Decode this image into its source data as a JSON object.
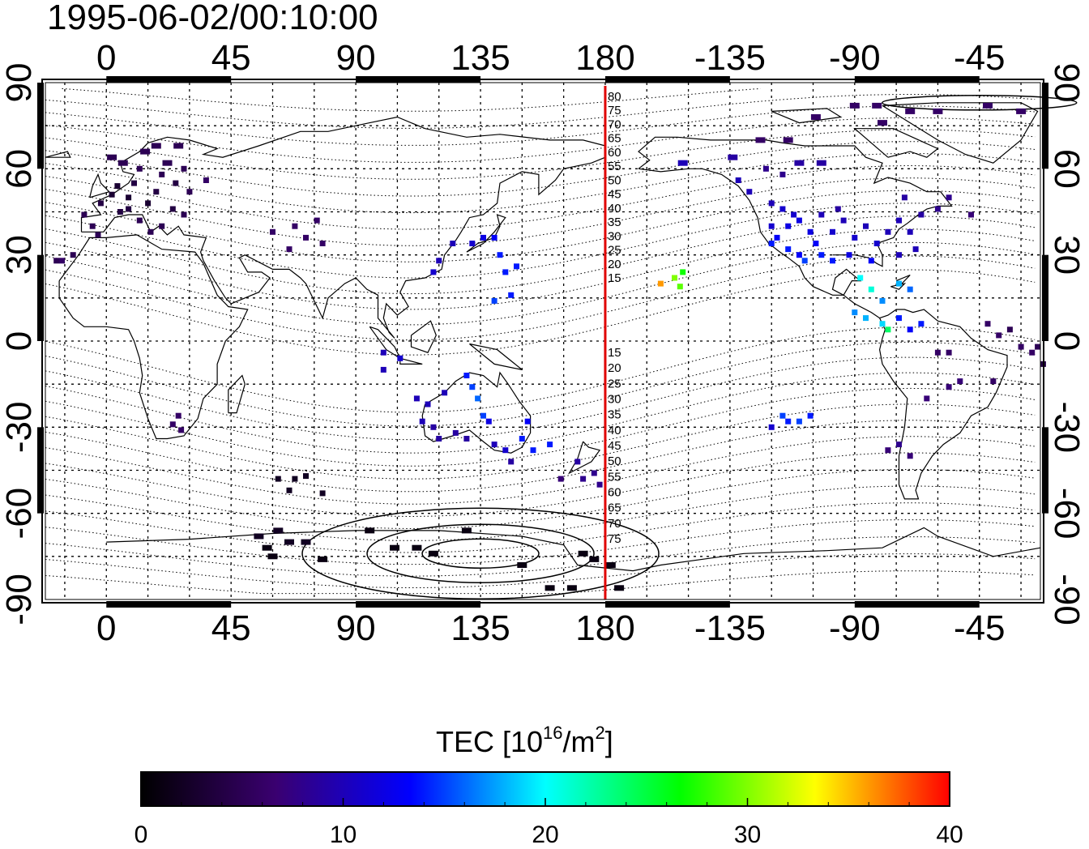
{
  "header": {
    "timestamp": "1995-06-02/00:10:00"
  },
  "chart_data": {
    "type": "scatter",
    "subtype": "geographic-map",
    "projection": "equirectangular",
    "lon_ticks_top": [
      "0",
      "45",
      "90",
      "135",
      "180",
      "-135",
      "-90",
      "-45"
    ],
    "lon_ticks_bottom": [
      "0",
      "45",
      "90",
      "135",
      "180",
      "-135",
      "-90",
      "-45"
    ],
    "lat_ticks_left": [
      "90",
      "60",
      "30",
      "0",
      "-30",
      "-60",
      "-90"
    ],
    "lat_ticks_right": [
      "90",
      "60",
      "30",
      "0",
      "-30",
      "-60",
      "-90"
    ],
    "xlim": [
      -22,
      337
    ],
    "ylim": [
      -90,
      90
    ],
    "grid": true,
    "meridian_marker": {
      "lon": 180,
      "color": "#e00000"
    },
    "contour_labels_north": [
      "80",
      "75",
      "70",
      "65",
      "60",
      "55",
      "50",
      "45",
      "40",
      "35",
      "30",
      "25",
      "20",
      "15"
    ],
    "contour_labels_south": [
      "15",
      "20",
      "25",
      "30",
      "35",
      "40",
      "45",
      "50",
      "55",
      "60",
      "65",
      "70",
      "75"
    ],
    "colorbar": {
      "title_prefix": "TEC  [10",
      "title_sup1": "16",
      "title_mid": "/m",
      "title_sup2": "2",
      "title_suffix": "]",
      "min": 0,
      "max": 40,
      "tick_labels": [
        "0",
        "10",
        "20",
        "30",
        "40"
      ],
      "colormap": [
        "#000000",
        "#3a0070",
        "#0000ff",
        "#00ffff",
        "#00ff00",
        "#ffff00",
        "#ff0000"
      ]
    },
    "tec_points": [
      [
        -8,
        44,
        5
      ],
      [
        -5,
        40,
        5
      ],
      [
        -2,
        48,
        4
      ],
      [
        2,
        51,
        3
      ],
      [
        5,
        45,
        4
      ],
      [
        8,
        50,
        3
      ],
      [
        10,
        55,
        4
      ],
      [
        12,
        60,
        5
      ],
      [
        15,
        48,
        3
      ],
      [
        18,
        52,
        4
      ],
      [
        20,
        58,
        5
      ],
      [
        22,
        62,
        5
      ],
      [
        25,
        55,
        4
      ],
      [
        28,
        60,
        5
      ],
      [
        14,
        66,
        5
      ],
      [
        18,
        68,
        5
      ],
      [
        6,
        62,
        5
      ],
      [
        2,
        64,
        5
      ],
      [
        26,
        68,
        5
      ],
      [
        30,
        52,
        5
      ],
      [
        36,
        56,
        6
      ],
      [
        12,
        42,
        5
      ],
      [
        16,
        38,
        5
      ],
      [
        20,
        40,
        5
      ],
      [
        24,
        46,
        4
      ],
      [
        28,
        44,
        5
      ],
      [
        -3,
        37,
        5
      ],
      [
        -16,
        28,
        6
      ],
      [
        -12,
        30,
        5
      ],
      [
        -18,
        28,
        5
      ],
      [
        8,
        46,
        4
      ],
      [
        4,
        54,
        3
      ],
      [
        60,
        38,
        6
      ],
      [
        68,
        40,
        6
      ],
      [
        72,
        36,
        6
      ],
      [
        76,
        42,
        6
      ],
      [
        66,
        32,
        6
      ],
      [
        78,
        34,
        6
      ],
      [
        26,
        -26,
        6
      ],
      [
        24,
        -29,
        6
      ],
      [
        27,
        -31,
        6
      ],
      [
        118,
        24,
        11
      ],
      [
        120,
        28,
        10
      ],
      [
        132,
        34,
        11
      ],
      [
        136,
        36,
        12
      ],
      [
        140,
        36,
        13
      ],
      [
        142,
        30,
        14
      ],
      [
        144,
        24,
        14
      ],
      [
        148,
        26,
        14
      ],
      [
        146,
        16,
        14
      ],
      [
        140,
        14,
        15
      ],
      [
        125,
        34,
        10
      ],
      [
        100,
        -4,
        10
      ],
      [
        100,
        -10,
        10
      ],
      [
        106,
        -6,
        11
      ],
      [
        112,
        -20,
        10
      ],
      [
        116,
        -22,
        10
      ],
      [
        118,
        -30,
        9
      ],
      [
        114,
        -28,
        10
      ],
      [
        120,
        -34,
        9
      ],
      [
        126,
        -32,
        9
      ],
      [
        130,
        -34,
        9
      ],
      [
        134,
        -20,
        16
      ],
      [
        136,
        -26,
        15
      ],
      [
        138,
        -28,
        12
      ],
      [
        140,
        -36,
        10
      ],
      [
        144,
        -38,
        11
      ],
      [
        146,
        -42,
        9
      ],
      [
        150,
        -34,
        14
      ],
      [
        152,
        -28,
        13
      ],
      [
        154,
        -38,
        14
      ],
      [
        160,
        -36,
        14
      ],
      [
        130,
        -12,
        14
      ],
      [
        132,
        -16,
        15
      ],
      [
        122,
        -18,
        10
      ],
      [
        170,
        -42,
        9
      ],
      [
        172,
        -48,
        8
      ],
      [
        176,
        -46,
        8
      ],
      [
        178,
        -50,
        8
      ],
      [
        164,
        -48,
        7
      ],
      [
        62,
        -48,
        2
      ],
      [
        66,
        -52,
        2
      ],
      [
        68,
        -48,
        2
      ],
      [
        72,
        -47,
        2
      ],
      [
        78,
        -53,
        2
      ],
      [
        55,
        -68,
        2
      ],
      [
        58,
        -72,
        1
      ],
      [
        62,
        -66,
        2
      ],
      [
        66,
        -70,
        2
      ],
      [
        72,
        -70,
        2
      ],
      [
        78,
        -76,
        1
      ],
      [
        95,
        -66,
        1
      ],
      [
        104,
        -72,
        1
      ],
      [
        112,
        -72,
        1
      ],
      [
        118,
        -74,
        1
      ],
      [
        130,
        -66,
        1
      ],
      [
        150,
        -78,
        1
      ],
      [
        160,
        -86,
        1
      ],
      [
        168,
        -86,
        1
      ],
      [
        172,
        -74,
        1
      ],
      [
        176,
        -76,
        1
      ],
      [
        182,
        -78,
        1
      ],
      [
        185,
        -86,
        1
      ],
      [
        60,
        -75,
        1
      ],
      [
        200,
        20,
        36
      ],
      [
        205,
        22,
        30
      ],
      [
        207,
        19,
        29
      ],
      [
        208,
        24,
        27
      ],
      [
        208,
        62,
        10
      ],
      [
        226,
        64,
        9
      ],
      [
        238,
        60,
        8
      ],
      [
        244,
        58,
        8
      ],
      [
        250,
        62,
        9
      ],
      [
        258,
        62,
        9
      ],
      [
        228,
        56,
        10
      ],
      [
        232,
        52,
        10
      ],
      [
        240,
        48,
        10
      ],
      [
        244,
        46,
        11
      ],
      [
        248,
        44,
        11
      ],
      [
        250,
        42,
        12
      ],
      [
        254,
        38,
        12
      ],
      [
        256,
        34,
        13
      ],
      [
        250,
        30,
        13
      ],
      [
        246,
        32,
        14
      ],
      [
        242,
        36,
        13
      ],
      [
        240,
        34,
        14
      ],
      [
        252,
        28,
        15
      ],
      [
        258,
        30,
        14
      ],
      [
        262,
        38,
        11
      ],
      [
        266,
        42,
        10
      ],
      [
        270,
        36,
        11
      ],
      [
        274,
        40,
        10
      ],
      [
        278,
        34,
        11
      ],
      [
        282,
        38,
        10
      ],
      [
        286,
        42,
        10
      ],
      [
        290,
        38,
        10
      ],
      [
        292,
        32,
        10
      ],
      [
        294,
        44,
        9
      ],
      [
        286,
        30,
        10
      ],
      [
        276,
        28,
        13
      ],
      [
        262,
        28,
        14
      ],
      [
        268,
        30,
        12
      ],
      [
        246,
        40,
        12
      ],
      [
        240,
        40,
        11
      ],
      [
        258,
        44,
        10
      ],
      [
        264,
        46,
        9
      ],
      [
        288,
        50,
        9
      ],
      [
        300,
        46,
        8
      ],
      [
        312,
        44,
        7
      ],
      [
        304,
        50,
        8
      ],
      [
        272,
        22,
        20
      ],
      [
        276,
        18,
        21
      ],
      [
        280,
        14,
        17
      ],
      [
        286,
        20,
        18
      ],
      [
        290,
        18,
        16
      ],
      [
        270,
        10,
        17
      ],
      [
        274,
        8,
        18
      ],
      [
        280,
        6,
        19
      ],
      [
        282,
        4,
        24
      ],
      [
        286,
        8,
        14
      ],
      [
        294,
        6,
        14
      ],
      [
        290,
        4,
        13
      ],
      [
        244,
        -26,
        15
      ],
      [
        246,
        -28,
        14
      ],
      [
        250,
        -28,
        15
      ],
      [
        240,
        -30,
        11
      ],
      [
        254,
        -26,
        14
      ],
      [
        282,
        -38,
        7
      ],
      [
        286,
        -36,
        8
      ],
      [
        290,
        -40,
        7
      ],
      [
        296,
        -20,
        7
      ],
      [
        304,
        -16,
        7
      ],
      [
        308,
        -14,
        7
      ],
      [
        300,
        -4,
        6
      ],
      [
        304,
        -4,
        6
      ],
      [
        318,
        6,
        6
      ],
      [
        322,
        2,
        6
      ],
      [
        326,
        4,
        5
      ],
      [
        330,
        -2,
        6
      ],
      [
        334,
        -4,
        6
      ],
      [
        338,
        -8,
        4
      ],
      [
        336,
        -2,
        5
      ],
      [
        320,
        -14,
        6
      ],
      [
        270,
        82,
        6
      ],
      [
        278,
        82,
        6
      ],
      [
        290,
        80,
        6
      ],
      [
        300,
        80,
        6
      ],
      [
        318,
        82,
        6
      ],
      [
        330,
        80,
        6
      ],
      [
        280,
        76,
        6
      ],
      [
        256,
        78,
        6
      ],
      [
        236,
        70,
        6
      ],
      [
        246,
        70,
        6
      ]
    ]
  }
}
